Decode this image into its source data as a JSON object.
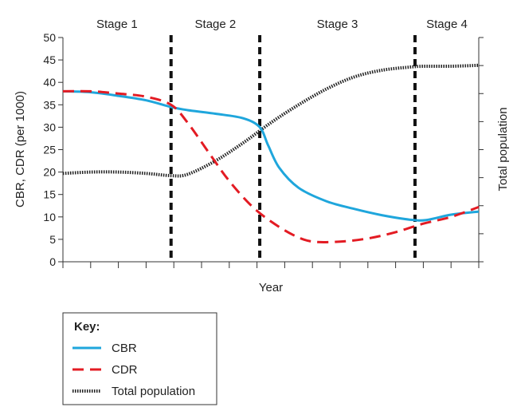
{
  "chart_data": {
    "type": "line",
    "title": "",
    "xlabel": "Year",
    "ylabel": "CBR, CDR (per 1000)",
    "y2label": "Total population",
    "ylim": [
      0,
      50
    ],
    "yticks": [
      0,
      5,
      10,
      15,
      20,
      25,
      30,
      35,
      40,
      45,
      50
    ],
    "xlim": [
      0,
      15
    ],
    "x_tick_count": 16,
    "y2_tick_count": 9,
    "stages": [
      {
        "label": "Stage 1",
        "start": 0,
        "end": 3.9
      },
      {
        "label": "Stage 2",
        "start": 3.9,
        "end": 7.1
      },
      {
        "label": "Stage 3",
        "start": 7.1,
        "end": 12.7
      },
      {
        "label": "Stage 4",
        "start": 12.7,
        "end": 15
      }
    ],
    "stage_boundaries": [
      3.9,
      7.1,
      12.7
    ],
    "grid": false,
    "legend_title": "Key:",
    "legend_position": "bottom-left",
    "series": [
      {
        "name": "CBR",
        "color": "#1fa6dc",
        "style": "solid",
        "x": [
          0,
          1,
          2,
          3,
          3.9,
          4.5,
          5.5,
          6.5,
          7.1,
          7.4,
          7.8,
          8.5,
          9.5,
          10.5,
          11.5,
          12.5,
          13.1,
          14,
          15
        ],
        "y": [
          38,
          37.8,
          37,
          36,
          34.5,
          33.8,
          33,
          32,
          30,
          26,
          21,
          16.5,
          13.5,
          11.8,
          10.4,
          9.4,
          9.3,
          10.5,
          11.2
        ]
      },
      {
        "name": "CDR",
        "color": "#e31b23",
        "style": "dashed",
        "x": [
          0,
          1,
          2,
          3,
          3.9,
          4.5,
          5.3,
          6,
          6.8,
          7.5,
          8.3,
          9,
          10,
          11,
          12,
          13,
          14,
          15
        ],
        "y": [
          38,
          38,
          37.5,
          36.8,
          35,
          31,
          24,
          18,
          12.5,
          9,
          6,
          4.5,
          4.5,
          5.2,
          6.6,
          8.5,
          10,
          12.2
        ]
      },
      {
        "name": "Total population",
        "color": "#222222",
        "style": "dotted",
        "x": [
          0,
          1,
          2,
          3,
          3.9,
          4.5,
          5.5,
          6.5,
          7.5,
          8.5,
          9.5,
          10.5,
          11.5,
          12.5,
          13,
          14,
          15
        ],
        "y": [
          19.7,
          20,
          20,
          19.7,
          19.2,
          19.5,
          22.5,
          26.5,
          31,
          35,
          38.5,
          41.2,
          42.7,
          43.4,
          43.6,
          43.6,
          43.8
        ]
      }
    ]
  }
}
